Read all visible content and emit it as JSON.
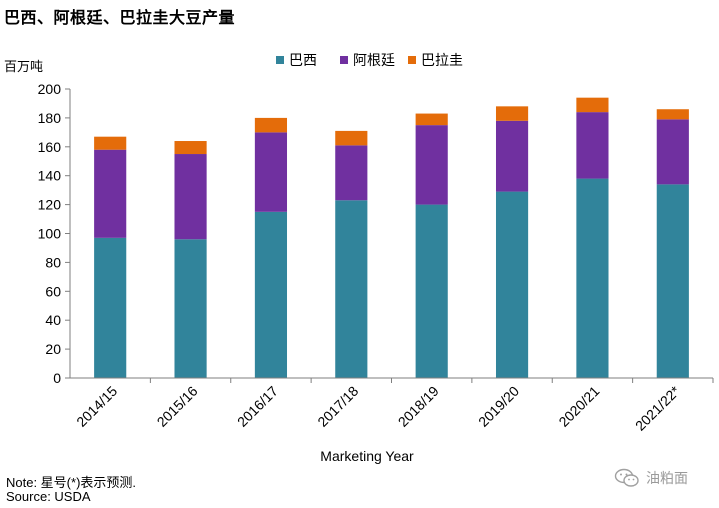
{
  "title": "巴西、阿根廷、巴拉圭大豆产量",
  "footer": {
    "note": "Note: 星号(*)表示预测.",
    "source": "Source: USDA"
  },
  "watermark": {
    "text": "油粕面",
    "icon": "wechat-icon"
  },
  "chart_data": {
    "type": "bar",
    "stacked": true,
    "title": "巴西、阿根廷、巴拉圭大豆产量",
    "ylabel": "百万吨",
    "xlabel": "Marketing Year",
    "ylim": [
      0,
      200
    ],
    "yticks": [
      0,
      20,
      40,
      60,
      80,
      100,
      120,
      140,
      160,
      180,
      200
    ],
    "grid": false,
    "legend_position": "top",
    "categories": [
      "2014/15",
      "2015/16",
      "2016/17",
      "2017/18",
      "2018/19",
      "2019/20",
      "2020/21",
      "2021/22*"
    ],
    "series": [
      {
        "name": "巴西",
        "color": "#31849b",
        "values": [
          97,
          96,
          115,
          123,
          120,
          129,
          138,
          134
        ]
      },
      {
        "name": "阿根廷",
        "color": "#7030a0",
        "values": [
          61,
          59,
          55,
          38,
          55,
          49,
          46,
          45
        ]
      },
      {
        "name": "巴拉圭",
        "color": "#e46c0a",
        "values": [
          9,
          9,
          10,
          10,
          8,
          10,
          10,
          7
        ]
      }
    ]
  }
}
